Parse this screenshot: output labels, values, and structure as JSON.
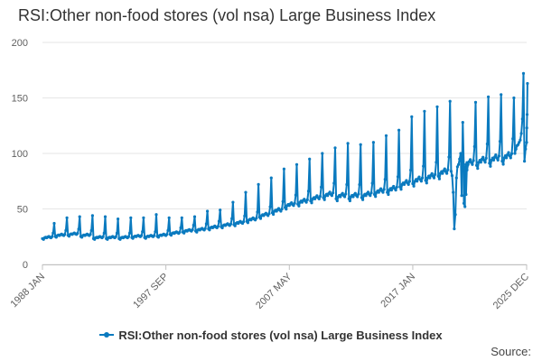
{
  "chart_data": {
    "type": "line",
    "title": "RSI:Other non-food stores (vol nsa) Large Business Index",
    "xlabel": "",
    "ylabel": "",
    "ylim": [
      0,
      200
    ],
    "yticks": [
      0,
      50,
      100,
      150,
      200
    ],
    "xticks": [
      {
        "label": "1988 JAN",
        "year": 1988.0
      },
      {
        "label": "1997 SEP",
        "year": 1997.667
      },
      {
        "label": "2007 MAY",
        "year": 2007.333
      },
      {
        "label": "2017 JAN",
        "year": 2017.0
      },
      {
        "label": "2025 DEC",
        "year": 2025.917
      }
    ],
    "x_range": [
      1988.0,
      2025.917
    ],
    "series": [
      {
        "name": "RSI:Other non-food stores (vol nsa) Large Business Index",
        "color": "#0a7abf",
        "sampling": "annual anchors: year, typical monthly level, December peak",
        "annual": [
          [
            1988,
            24,
            37
          ],
          [
            1989,
            26,
            42
          ],
          [
            1990,
            27,
            43
          ],
          [
            1991,
            26,
            44
          ],
          [
            1992,
            24,
            43
          ],
          [
            1993,
            24,
            41
          ],
          [
            1994,
            24,
            42
          ],
          [
            1995,
            25,
            42
          ],
          [
            1996,
            25,
            45
          ],
          [
            1997,
            26,
            42
          ],
          [
            1998,
            28,
            42
          ],
          [
            1999,
            30,
            43
          ],
          [
            2000,
            31,
            48
          ],
          [
            2001,
            33,
            49
          ],
          [
            2002,
            35,
            56
          ],
          [
            2003,
            37,
            65
          ],
          [
            2004,
            40,
            72
          ],
          [
            2005,
            44,
            78
          ],
          [
            2006,
            48,
            86
          ],
          [
            2007,
            53,
            90
          ],
          [
            2008,
            56,
            95
          ],
          [
            2009,
            59,
            100
          ],
          [
            2010,
            62,
            105
          ],
          [
            2011,
            61,
            109
          ],
          [
            2012,
            61,
            108
          ],
          [
            2013,
            62,
            110
          ],
          [
            2014,
            65,
            116
          ],
          [
            2015,
            67,
            121
          ],
          [
            2016,
            72,
            133
          ],
          [
            2017,
            75,
            138
          ],
          [
            2018,
            78,
            142
          ],
          [
            2019,
            82,
            147
          ],
          [
            2021,
            90,
            146
          ],
          [
            2022,
            92,
            151
          ],
          [
            2023,
            94,
            153
          ],
          [
            2024,
            96,
            150
          ]
        ],
        "points_2020_2025": [
          [
            2020.0,
            84
          ],
          [
            2020.083,
            80
          ],
          [
            2020.167,
            65
          ],
          [
            2020.25,
            32
          ],
          [
            2020.333,
            45
          ],
          [
            2020.417,
            78
          ],
          [
            2020.5,
            88
          ],
          [
            2020.583,
            90
          ],
          [
            2020.667,
            95
          ],
          [
            2020.75,
            100
          ],
          [
            2020.833,
            62
          ],
          [
            2020.917,
            128
          ],
          [
            2021.0,
            55
          ],
          [
            2021.083,
            52
          ],
          [
            2021.167,
            63
          ],
          [
            2021.25,
            85
          ],
          [
            2025.0,
            100
          ],
          [
            2025.083,
            104
          ],
          [
            2025.167,
            107
          ],
          [
            2025.25,
            108
          ],
          [
            2025.333,
            110
          ],
          [
            2025.417,
            112
          ],
          [
            2025.5,
            118
          ],
          [
            2025.583,
            131
          ],
          [
            2025.667,
            172
          ],
          [
            2025.75,
            93
          ],
          [
            2025.833,
            104
          ],
          [
            2025.917,
            110
          ],
          [
            2025.93,
            123
          ],
          [
            2025.95,
            135
          ],
          [
            2025.98,
            163
          ]
        ]
      }
    ],
    "legend": {
      "position": "bottom-center",
      "label": "RSI:Other non-food stores (vol nsa) Large Business Index"
    }
  },
  "credits": "Source:"
}
